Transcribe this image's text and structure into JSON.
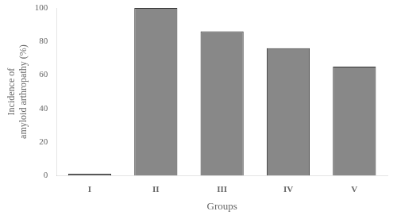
{
  "chart_data": {
    "type": "bar",
    "categories": [
      "I",
      "II",
      "III",
      "IV",
      "V"
    ],
    "values": [
      1,
      100,
      86,
      76,
      65
    ],
    "color": "#888888",
    "xlabel": "Groups",
    "ylabel": "Incidence of\namyloid arthropathy (%)",
    "ylim": [
      0,
      100
    ],
    "yticks": [
      0,
      20,
      40,
      60,
      80,
      100
    ],
    "grid": false
  }
}
